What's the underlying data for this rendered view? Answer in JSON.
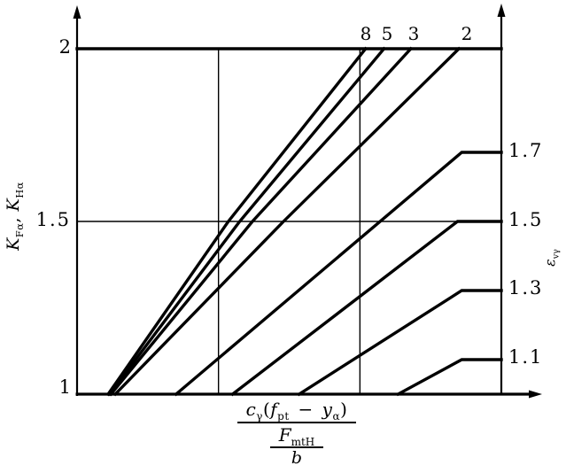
{
  "figure": {
    "background": "#ffffff",
    "ink_color": "#000000"
  },
  "chart_data": {
    "type": "line",
    "title": "",
    "xlabel": "c_γ(f_pt − y_α) / (F_mtH / b)",
    "ylabel_left": "K_Fα, K_Hα",
    "ylabel_right": "ε_vγ",
    "x_range": [
      0,
      3
    ],
    "y_range": [
      1,
      2
    ],
    "x_tick_labels": [],
    "x_gridlines": [
      1,
      2
    ],
    "y_gridlines": [
      1.5
    ],
    "cap_y": 2,
    "legend_position": "labels-inline",
    "left_ticks": [
      {
        "value": 2,
        "label": "2"
      },
      {
        "value": 1.5,
        "label": "1.5"
      },
      {
        "value": 1,
        "label": "1"
      }
    ],
    "right_ticks": [
      {
        "value": 1.7,
        "label": "1.7"
      },
      {
        "value": 1.5,
        "label": "1.5"
      },
      {
        "value": 1.3,
        "label": "1.3"
      },
      {
        "value": 1.1,
        "label": "1.1"
      }
    ],
    "top_curve_labels": [
      {
        "x": 2.04,
        "label": "8"
      },
      {
        "x": 2.19,
        "label": "5"
      },
      {
        "x": 2.38,
        "label": "3"
      },
      {
        "x": 2.76,
        "label": "2"
      }
    ],
    "series": [
      {
        "name": "eps-vg-8",
        "label": "8",
        "points": [
          [
            0.22,
            1.0
          ],
          [
            1.07,
            1.5
          ],
          [
            2.04,
            2.0
          ]
        ]
      },
      {
        "name": "eps-vg-5",
        "label": "5",
        "points": [
          [
            0.23,
            1.0
          ],
          [
            1.15,
            1.5
          ],
          [
            2.17,
            2.0
          ]
        ]
      },
      {
        "name": "eps-vg-3",
        "label": "3",
        "points": [
          [
            0.24,
            1.0
          ],
          [
            1.24,
            1.5
          ],
          [
            2.36,
            2.0
          ]
        ]
      },
      {
        "name": "eps-vg-2",
        "label": "2",
        "points": [
          [
            0.27,
            1.0
          ],
          [
            1.46,
            1.5
          ],
          [
            2.7,
            2.0
          ]
        ]
      },
      {
        "name": "eps-vg-1-7",
        "label": "1.7",
        "points": [
          [
            0.7,
            1.0
          ],
          [
            2.72,
            1.7
          ],
          [
            3.0,
            1.7
          ]
        ]
      },
      {
        "name": "eps-vg-1-5",
        "label": "1.5",
        "points": [
          [
            1.1,
            1.0
          ],
          [
            2.69,
            1.5
          ],
          [
            3.0,
            1.5
          ]
        ]
      },
      {
        "name": "eps-vg-1-3",
        "label": "1.3",
        "points": [
          [
            1.57,
            1.0
          ],
          [
            2.72,
            1.3
          ],
          [
            3.0,
            1.3
          ]
        ]
      },
      {
        "name": "eps-vg-1-1",
        "label": "1.1",
        "points": [
          [
            2.27,
            1.0
          ],
          [
            2.72,
            1.1
          ],
          [
            3.0,
            1.1
          ]
        ]
      }
    ]
  },
  "labels": {
    "y_left": {
      "var1": "K",
      "sub1": "Fα",
      "sep": ", ",
      "var2": "K",
      "sub2": "Hα"
    },
    "y_right": {
      "var": "ε",
      "sub": "vγ"
    },
    "x_frac": {
      "c": "c",
      "c_sub": "γ",
      "open": "(",
      "f": "f",
      "f_sub": "pt",
      "minus": " − ",
      "y": "y",
      "y_sub": "α",
      "close": ")",
      "F": "F",
      "F_sub": "mtH",
      "b": "b"
    }
  }
}
